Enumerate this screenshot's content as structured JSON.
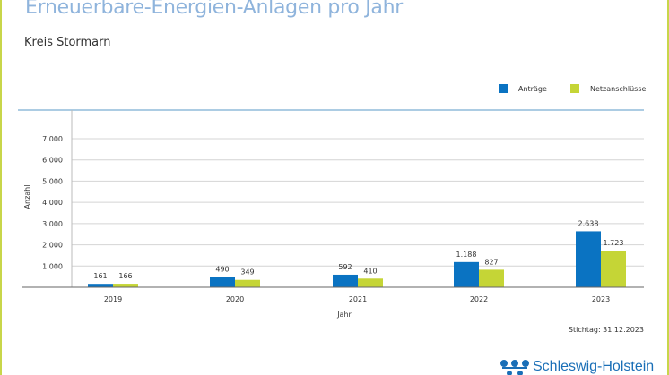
{
  "header": {
    "title": "Erneuerbare-Energien-Anlagen pro Jahr",
    "subtitle": "Kreis Stormarn"
  },
  "footer": {
    "stichtag": "Stichtag: 31.12.2023",
    "logo_text": "Schleswig-Holstein"
  },
  "chart_data": {
    "type": "bar",
    "title": "Erneuerbare-Energien-Anlagen pro Jahr",
    "subtitle": "Kreis Stormarn",
    "xlabel": "Jahr",
    "ylabel": "Anzahl",
    "categories": [
      "2019",
      "2020",
      "2021",
      "2022",
      "2023"
    ],
    "series": [
      {
        "name": "Anträge",
        "color": "#0a73c2",
        "values": [
          161,
          490,
          592,
          1188,
          2638
        ],
        "labels": [
          "161",
          "490",
          "592",
          "1.188",
          "2.638"
        ]
      },
      {
        "name": "Netzanschlüsse",
        "color": "#c5d536",
        "values": [
          166,
          349,
          410,
          827,
          1723
        ],
        "labels": [
          "166",
          "349",
          "410",
          "827",
          "1.723"
        ]
      }
    ],
    "yticks": [
      1000,
      2000,
      3000,
      4000,
      5000,
      6000,
      7000
    ],
    "ytick_labels": [
      "1.000",
      "2.000",
      "3.000",
      "4.000",
      "5.000",
      "6.000",
      "7.000"
    ],
    "ylim": [
      0,
      7000
    ],
    "grid": true,
    "legend": "top-right"
  }
}
